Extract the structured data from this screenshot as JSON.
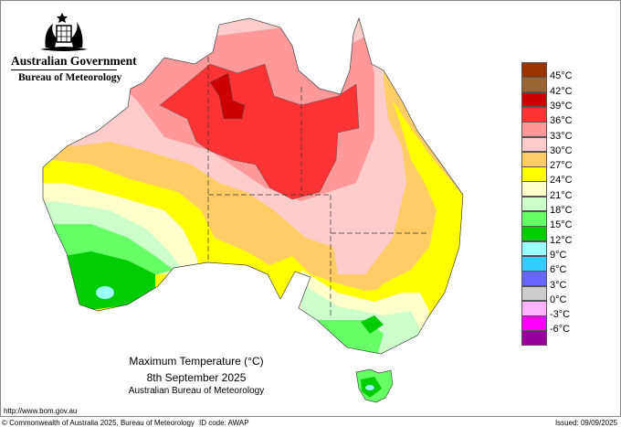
{
  "header": {
    "org": "Australian Government",
    "agency": "Bureau of Meteorology"
  },
  "map": {
    "title": "Maximum Temperature (°C)",
    "date": "8th September 2025",
    "credit": "Australian Bureau of Meteorology"
  },
  "legend": {
    "colors": [
      "#993300",
      "#996633",
      "#cc0000",
      "#ff3333",
      "#ff9999",
      "#ffcccc",
      "#ffcc66",
      "#ffff00",
      "#ffffcc",
      "#ccffcc",
      "#66ff66",
      "#00cc00",
      "#99ffff",
      "#33ccff",
      "#6666ff",
      "#cccccc",
      "#ffb3ff",
      "#ff00ff",
      "#990099"
    ],
    "labels": [
      "45°C",
      "42°C",
      "39°C",
      "36°C",
      "33°C",
      "30°C",
      "27°C",
      "24°C",
      "21°C",
      "18°C",
      "15°C",
      "12°C",
      "9°C",
      "6°C",
      "3°C",
      "0°C",
      "-3°C",
      "-6°C"
    ]
  },
  "footer": {
    "url": "http://www.bom.gov.au",
    "copyright": "© Commonwealth of Australia 2025, Bureau of Meteorology",
    "id_code": "ID code: AWAP",
    "issued": "Issued: 09/09/2025"
  }
}
